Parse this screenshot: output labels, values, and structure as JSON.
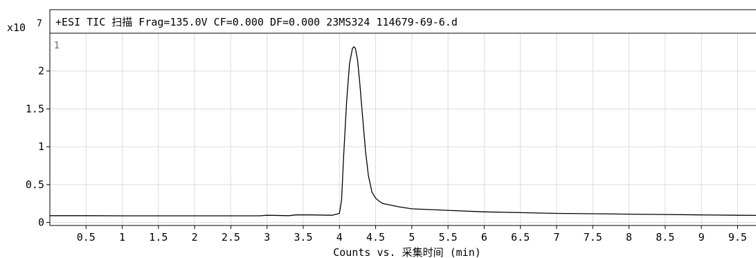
{
  "chart_data": {
    "type": "line",
    "title": "+ESI TIC 扫描 Frag=135.0V CF=0.000 DF=0.000 23MS324 114679-69-6.d",
    "xlabel": "Counts vs. 采集时间 (min)",
    "ylabel": "",
    "y_multiplier": "x10",
    "y_exponent": "7",
    "panel_label": "1",
    "xlim": [
      0,
      9.85
    ],
    "ylim": [
      -0.04,
      2.5
    ],
    "grid": true,
    "x_ticks": [
      "0.5",
      "1",
      "1.5",
      "2",
      "2.5",
      "3",
      "3.5",
      "4",
      "4.5",
      "5",
      "5.5",
      "6",
      "6.5",
      "7",
      "7.5",
      "8",
      "8.5",
      "9",
      "9.5"
    ],
    "x_tick_values": [
      0.5,
      1,
      1.5,
      2,
      2.5,
      3,
      3.5,
      4,
      4.5,
      5,
      5.5,
      6,
      6.5,
      7,
      7.5,
      8,
      8.5,
      9,
      9.5
    ],
    "y_ticks": [
      "0",
      "0.5",
      "1",
      "1.5",
      "2"
    ],
    "y_tick_values": [
      0,
      0.5,
      1,
      1.5,
      2
    ],
    "series": [
      {
        "color": "#000000",
        "x": [
          0,
          0.5,
          1,
          1.5,
          2,
          2.5,
          2.9,
          3.0,
          3.3,
          3.4,
          3.6,
          3.9,
          4.0,
          4.03,
          4.06,
          4.1,
          4.14,
          4.18,
          4.2,
          4.22,
          4.25,
          4.28,
          4.32,
          4.36,
          4.4,
          4.45,
          4.5,
          4.55,
          4.6,
          4.7,
          4.8,
          5.0,
          5.5,
          6.0,
          6.5,
          7.0,
          7.5,
          8.0,
          8.5,
          9.0,
          9.5,
          9.85
        ],
        "y": [
          0.09,
          0.09,
          0.088,
          0.088,
          0.088,
          0.088,
          0.088,
          0.095,
          0.09,
          0.1,
          0.1,
          0.095,
          0.12,
          0.3,
          0.9,
          1.6,
          2.1,
          2.3,
          2.32,
          2.3,
          2.15,
          1.85,
          1.4,
          0.95,
          0.62,
          0.4,
          0.32,
          0.28,
          0.25,
          0.23,
          0.21,
          0.18,
          0.16,
          0.14,
          0.13,
          0.12,
          0.115,
          0.11,
          0.105,
          0.1,
          0.095,
          0.093
        ]
      }
    ]
  }
}
